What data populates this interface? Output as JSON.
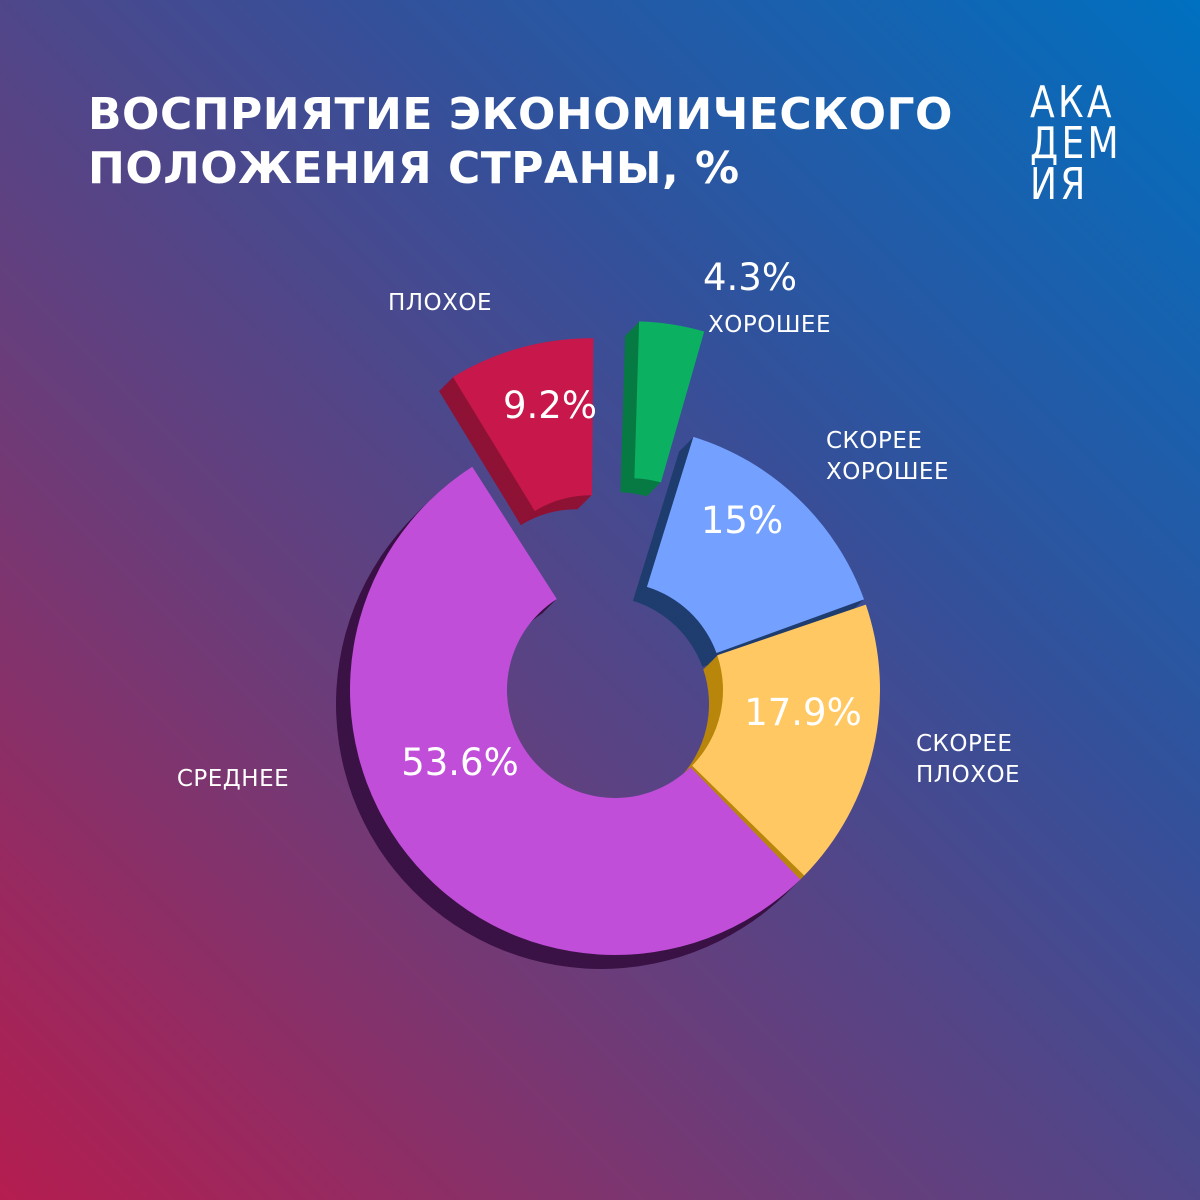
{
  "title": {
    "line1": "ВОСПРИЯТИЕ ЭКОНОМИЧЕСКОГО",
    "line2": "ПОЛОЖЕНИЯ СТРАНЫ, %"
  },
  "logo": [
    "АКА",
    "ДЕМ",
    "ИЯ"
  ],
  "chart_data": {
    "type": "pie",
    "title": "ВОСПРИЯТИЕ ЭКОНОМИЧЕСКОГО ПОЛОЖЕНИЯ СТРАНЫ, %",
    "unit": "%",
    "donut": true,
    "slices": [
      {
        "label": "ПЛОХОЕ",
        "value": 9.2,
        "display": "9.2%",
        "color": "#c8174a",
        "side_color": "#8e1235",
        "exploded": true
      },
      {
        "label": "ХОРОШЕЕ",
        "value": 4.3,
        "display": "4.3%",
        "color": "#0bb161",
        "side_color": "#077a43",
        "exploded": true
      },
      {
        "label": "СКОРЕЕ ХОРОШЕЕ",
        "value": 15,
        "display": "15%",
        "color": "#74a1ff",
        "side_color": "#1f3d6e",
        "exploded": false
      },
      {
        "label": "СКОРЕЕ ПЛОХОЕ",
        "value": 17.9,
        "display": "17.9%",
        "color": "#ffc862",
        "side_color": "#b8860b",
        "exploded": false
      },
      {
        "label": "СРЕДНЕЕ",
        "value": 53.6,
        "display": "53.6%",
        "color": "#c04ed8",
        "side_color": "#3a1245",
        "exploded": false
      }
    ]
  }
}
